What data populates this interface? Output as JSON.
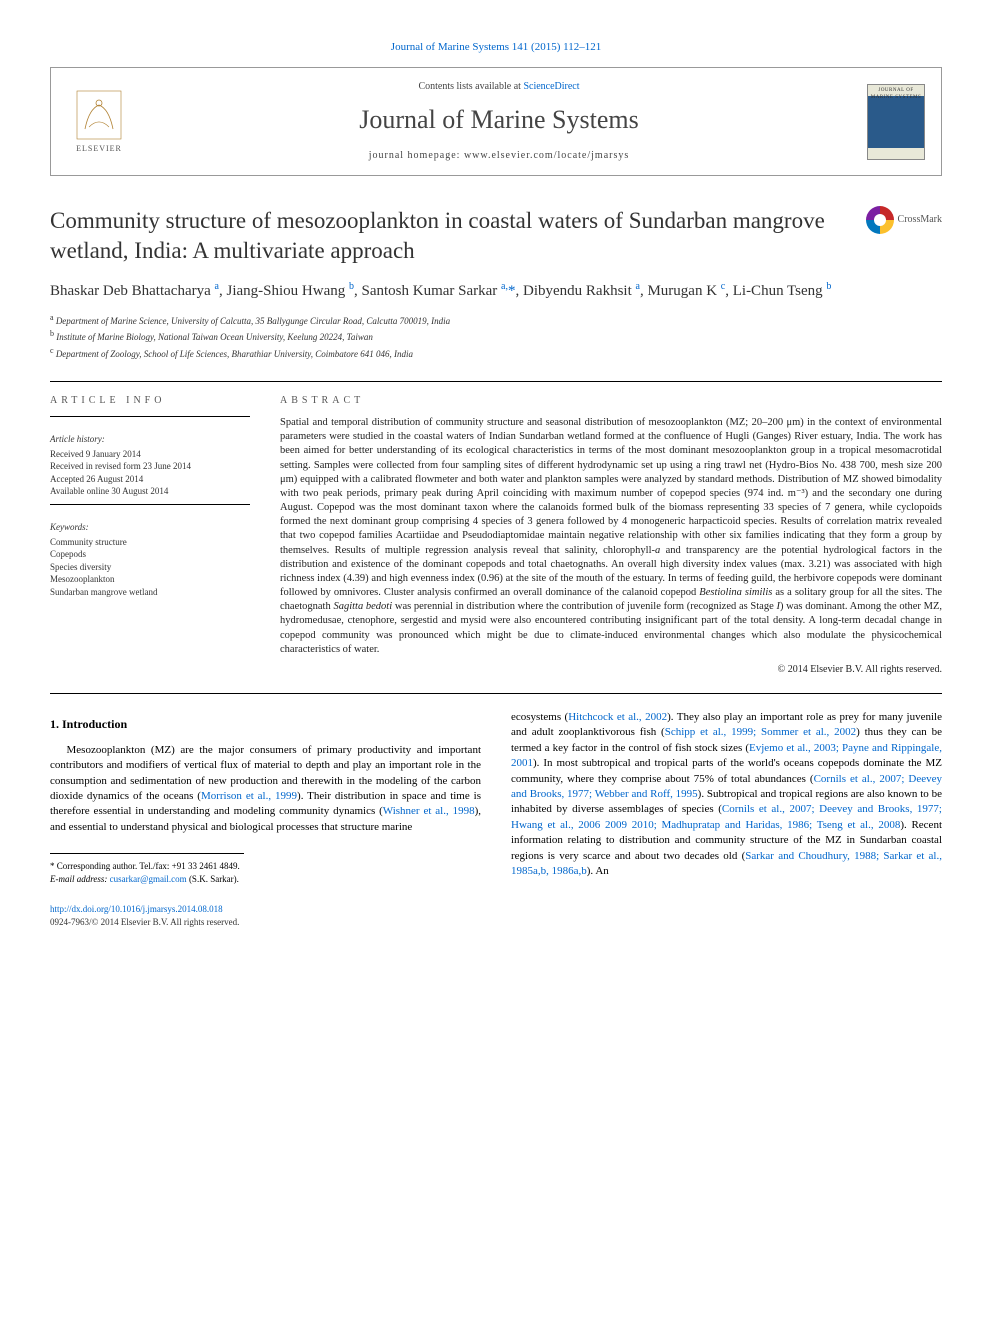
{
  "top_link": "Journal of Marine Systems 141 (2015) 112–121",
  "header": {
    "contents_prefix": "Contents lists available at ",
    "contents_link": "ScienceDirect",
    "journal_name": "Journal of Marine Systems",
    "homepage_prefix": "journal homepage: ",
    "homepage": "www.elsevier.com/locate/jmarsys",
    "publisher": "ELSEVIER",
    "cover_text": "JOURNAL OF MARINE SYSTEMS"
  },
  "crossmark_label": "CrossMark",
  "title": "Community structure of mesozooplankton in coastal waters of Sundarban mangrove wetland, India: A multivariate approach",
  "authors_html": "Bhaskar Deb Bhattacharya <sup>a</sup>, Jiang-Shiou Hwang <sup>b</sup>, Santosh Kumar Sarkar <sup>a,</sup><span class='star'>*</span>, Dibyendu Rakhsit <sup>a</sup>, Murugan K <sup>c</sup>, Li-Chun Tseng <sup>b</sup>",
  "affiliations": [
    {
      "sup": "a",
      "text": "Department of Marine Science, University of Calcutta, 35 Ballygunge Circular Road, Calcutta 700019, India"
    },
    {
      "sup": "b",
      "text": "Institute of Marine Biology, National Taiwan Ocean University, Keelung 20224, Taiwan"
    },
    {
      "sup": "c",
      "text": "Department of Zoology, School of Life Sciences, Bharathiar University, Coimbatore 641 046, India"
    }
  ],
  "article_info_label": "article info",
  "abstract_label": "abstract",
  "history_label": "Article history:",
  "history": [
    "Received 9 January 2014",
    "Received in revised form 23 June 2014",
    "Accepted 26 August 2014",
    "Available online 30 August 2014"
  ],
  "keywords_label": "Keywords:",
  "keywords": [
    "Community structure",
    "Copepods",
    "Species diversity",
    "Mesozooplankton",
    "Sundarban mangrove wetland"
  ],
  "abstract_body": "Spatial and temporal distribution of community structure and seasonal distribution of mesozooplankton (MZ; 20–200 μm) in the context of environmental parameters were studied in the coastal waters of Indian Sundarban wetland formed at the confluence of Hugli (Ganges) River estuary, India. The work has been aimed for better understanding of its ecological characteristics in terms of the most dominant mesozooplankton group in a tropical mesomacrotidal setting. Samples were collected from four sampling sites of different hydrodynamic set up using a ring trawl net (Hydro-Bios No. 438 700, mesh size 200 μm) equipped with a calibrated flowmeter and both water and plankton samples were analyzed by standard methods. Distribution of MZ showed bimodality with two peak periods, primary peak during April coinciding with maximum number of copepod species (974 ind. m⁻³) and the secondary one during August. Copepod was the most dominant taxon where the calanoids formed bulk of the biomass representing 33 species of 7 genera, while cyclopoids formed the next dominant group comprising 4 species of 3 genera followed by 4 monogeneric harpacticoid species. Results of correlation matrix revealed that two copepod families Acartiidae and Pseudodiaptomidae maintain negative relationship with other six families indicating that they form a group by themselves. Results of multiple regression analysis reveal that salinity, chlorophyll-<i>a</i> and transparency are the potential hydrological factors in the distribution and existence of the dominant copepods and total chaetognaths. An overall high diversity index values (max. 3.21) was associated with high richness index (4.39) and high evenness index (0.96) at the site of the mouth of the estuary. In terms of feeding guild, the herbivore copepods were dominant followed by omnivores. Cluster analysis confirmed an overall dominance of the calanoid copepod <i>Bestiolina similis</i> as a solitary group for all the sites. The chaetognath <i>Sagitta bedoti</i> was perennial in distribution where the contribution of juvenile form (recognized as Stage <i>I</i>) was dominant. Among the other MZ, hydromedusae, ctenophore, sergestid and mysid were also encountered contributing insignificant part of the total density. A long-term decadal change in copepod community was pronounced which might be due to climate-induced environmental changes which also modulate the physicochemical characteristics of water.",
  "copyright": "© 2014 Elsevier B.V. All rights reserved.",
  "intro_heading": "1. Introduction",
  "intro_col1": "Mesozooplankton (MZ) are the major consumers of primary productivity and important contributors and modifiers of vertical flux of material to depth and play an important role in the consumption and sedimentation of new production and therewith in the modeling of the carbon dioxide dynamics of the oceans (<a>Morrison et al., 1999</a>). Their distribution in space and time is therefore essential in understanding and modeling community dynamics (<a>Wishner et al., 1998</a>), and essential to understand physical and biological processes that structure marine",
  "intro_col2": "ecosystems (<a>Hitchcock et al., 2002</a>). They also play an important role as prey for many juvenile and adult zooplanktivorous fish (<a>Schipp et al., 1999; Sommer et al., 2002</a>) thus they can be termed a key factor in the control of fish stock sizes (<a>Evjemo et al., 2003; Payne and Rippingale, 2001</a>). In most subtropical and tropical parts of the world's oceans copepods dominate the MZ community, where they comprise about 75% of total abundances (<a>Cornils et al., 2007; Deevey and Brooks, 1977; Webber and Roff, 1995</a>). Subtropical and tropical regions are also known to be inhabited by diverse assemblages of species (<a>Cornils et al., 2007; Deevey and Brooks, 1977; Hwang et al., 2006 2009 2010; Madhupratap and Haridas, 1986; Tseng et al., 2008</a>). Recent information relating to distribution and community structure of the MZ in Sundarban coastal regions is very scarce and about two decades old (<a>Sarkar and Choudhury, 1988; Sarkar et al., 1985a,b, 1986a,b</a>). An",
  "footnote_corr": "* Corresponding author. Tel./fax: +91 33 2461 4849.",
  "footnote_email_label": "E-mail address: ",
  "footnote_email": "cusarkar@gmail.com",
  "footnote_email_tail": " (S.K. Sarkar).",
  "doi": "http://dx.doi.org/10.1016/j.jmarsys.2014.08.018",
  "issn_line": "0924-7963/© 2014 Elsevier B.V. All rights reserved.",
  "colors": {
    "link": "#0066cc",
    "text": "#000000",
    "heading_gray": "#555555",
    "rule": "#000000"
  }
}
